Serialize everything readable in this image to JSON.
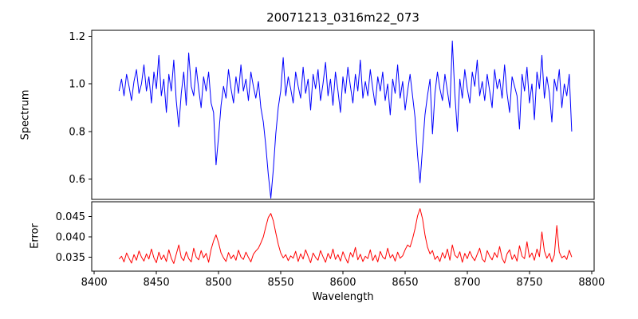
{
  "chart_data": [
    {
      "type": "line",
      "title": "20071213_0316m22_073",
      "ylabel": "Spectrum",
      "xlim": [
        8398,
        8802
      ],
      "ylim": [
        0.515,
        1.225
      ],
      "yticks": [
        0.6,
        0.8,
        1.0,
        1.2
      ],
      "ytick_labels": [
        "0.6",
        "0.8",
        "1.0",
        "1.2"
      ],
      "grid": false,
      "legend": "none",
      "series": [
        {
          "name": "spectrum",
          "color": "#0000ff",
          "x_start": 8420,
          "x_step": 2,
          "values": [
            0.97,
            1.02,
            0.95,
            1.04,
            0.99,
            0.93,
            1.01,
            1.06,
            0.96,
            1.0,
            1.08,
            0.97,
            1.03,
            0.92,
            1.05,
            0.98,
            1.12,
            0.95,
            1.02,
            0.88,
            1.04,
            0.97,
            1.1,
            0.93,
            0.82,
            0.96,
            1.05,
            0.91,
            1.13,
            0.99,
            0.95,
            1.07,
            0.98,
            0.9,
            1.03,
            0.97,
            1.05,
            0.92,
            0.88,
            0.66,
            0.78,
            0.91,
            0.99,
            0.94,
            1.06,
            0.98,
            0.92,
            1.03,
            0.96,
            1.08,
            0.97,
            1.02,
            0.93,
            1.05,
            0.99,
            0.94,
            1.01,
            0.9,
            0.84,
            0.74,
            0.62,
            0.52,
            0.64,
            0.79,
            0.9,
            0.97,
            1.11,
            0.95,
            1.03,
            0.98,
            0.92,
            1.05,
            0.99,
            0.94,
            1.07,
            0.96,
            1.02,
            0.89,
            1.04,
            0.98,
            1.06,
            0.93,
            1.0,
            1.09,
            0.95,
            1.02,
            0.91,
            1.05,
            0.97,
            0.88,
            1.03,
            0.96,
            1.07,
            0.99,
            0.92,
            1.04,
            0.97,
            1.1,
            0.94,
            1.01,
            0.95,
            1.06,
            0.98,
            0.91,
            1.03,
            0.97,
            1.05,
            0.93,
            1.0,
            0.87,
            1.02,
            0.96,
            1.08,
            0.94,
            1.01,
            0.89,
            0.97,
            1.04,
            0.95,
            0.86,
            0.7,
            0.585,
            0.73,
            0.87,
            0.95,
            1.02,
            0.79,
            0.96,
            1.05,
            0.98,
            0.93,
            1.04,
            0.97,
            0.9,
            1.18,
            0.96,
            0.8,
            1.02,
            0.94,
            1.06,
            0.98,
            0.92,
            1.05,
            0.99,
            1.1,
            0.95,
            1.01,
            0.93,
            1.04,
            0.97,
            0.9,
            1.06,
            0.98,
            1.02,
            0.94,
            1.08,
            0.96,
            0.88,
            1.03,
            0.99,
            0.95,
            0.81,
            1.04,
            0.97,
            1.07,
            0.92,
            1.0,
            0.85,
            1.05,
            0.98,
            1.12,
            0.94,
            1.03,
            0.96,
            0.84,
            1.02,
            0.97,
            1.06,
            0.9,
            1.0,
            0.95,
            1.04,
            0.8
          ]
        }
      ],
      "notes": "absorption features near 8498, 8542 (deepest ~0.52) and 8662"
    },
    {
      "type": "line",
      "ylabel": "Error",
      "xlabel": "Wavelength",
      "xlim": [
        8398,
        8802
      ],
      "ylim": [
        0.0315,
        0.0487
      ],
      "yticks": [
        0.035,
        0.04,
        0.045
      ],
      "ytick_labels": [
        "0.035",
        "0.040",
        "0.045"
      ],
      "xticks": [
        8400,
        8450,
        8500,
        8550,
        8600,
        8650,
        8700,
        8750,
        8800
      ],
      "xtick_labels": [
        "8400",
        "8450",
        "8500",
        "8550",
        "8600",
        "8650",
        "8700",
        "8750",
        "8800"
      ],
      "grid": false,
      "legend": "none",
      "series": [
        {
          "name": "error",
          "color": "#ff0000",
          "x_start": 8420,
          "x_step": 2,
          "values": [
            0.0345,
            0.0352,
            0.0338,
            0.036,
            0.0347,
            0.0335,
            0.0356,
            0.0342,
            0.0365,
            0.035,
            0.034,
            0.0358,
            0.0345,
            0.037,
            0.0348,
            0.0336,
            0.0362,
            0.0344,
            0.0355,
            0.0339,
            0.0368,
            0.0347,
            0.0334,
            0.0357,
            0.038,
            0.0349,
            0.0341,
            0.0363,
            0.0346,
            0.0338,
            0.0372,
            0.035,
            0.0343,
            0.0366,
            0.0348,
            0.0359,
            0.0337,
            0.0369,
            0.039,
            0.0405,
            0.0385,
            0.036,
            0.0348,
            0.0339,
            0.0361,
            0.0346,
            0.0355,
            0.0342,
            0.0367,
            0.035,
            0.0344,
            0.0362,
            0.0349,
            0.0338,
            0.0357,
            0.0365,
            0.0372,
            0.0385,
            0.04,
            0.0425,
            0.0448,
            0.0458,
            0.044,
            0.041,
            0.0382,
            0.036,
            0.0348,
            0.0356,
            0.0341,
            0.0353,
            0.0347,
            0.0364,
            0.0339,
            0.0358,
            0.0345,
            0.0368,
            0.0352,
            0.0336,
            0.036,
            0.0349,
            0.0342,
            0.0366,
            0.0351,
            0.0337,
            0.0359,
            0.0346,
            0.037,
            0.0344,
            0.0356,
            0.034,
            0.0363,
            0.0348,
            0.0335,
            0.0361,
            0.035,
            0.0374,
            0.0343,
            0.0357,
            0.0339,
            0.0352,
            0.0346,
            0.0368,
            0.0341,
            0.0355,
            0.0338,
            0.0364,
            0.035,
            0.0345,
            0.0372,
            0.0348,
            0.0356,
            0.034,
            0.0362,
            0.0347,
            0.0353,
            0.0368,
            0.038,
            0.0375,
            0.0395,
            0.042,
            0.0452,
            0.047,
            0.0445,
            0.0405,
            0.0375,
            0.0358,
            0.0366,
            0.0344,
            0.0352,
            0.0339,
            0.0361,
            0.0347,
            0.037,
            0.0342,
            0.038,
            0.0355,
            0.0348,
            0.0363,
            0.0337,
            0.0359,
            0.0346,
            0.0364,
            0.035,
            0.0341,
            0.0357,
            0.0372,
            0.0345,
            0.0338,
            0.0366,
            0.0352,
            0.0343,
            0.0361,
            0.0349,
            0.0376,
            0.0347,
            0.0335,
            0.0358,
            0.0368,
            0.0344,
            0.0356,
            0.034,
            0.0378,
            0.0352,
            0.0346,
            0.0388,
            0.0349,
            0.036,
            0.0342,
            0.037,
            0.0351,
            0.0412,
            0.0365,
            0.0347,
            0.0359,
            0.0338,
            0.0355,
            0.0428,
            0.0362,
            0.0348,
            0.0353,
            0.0344,
            0.0367,
            0.035
          ]
        }
      ],
      "notes": "error peaks near 8498 (~0.040), 8542 (~0.046) and 8662 (~0.047)"
    }
  ]
}
